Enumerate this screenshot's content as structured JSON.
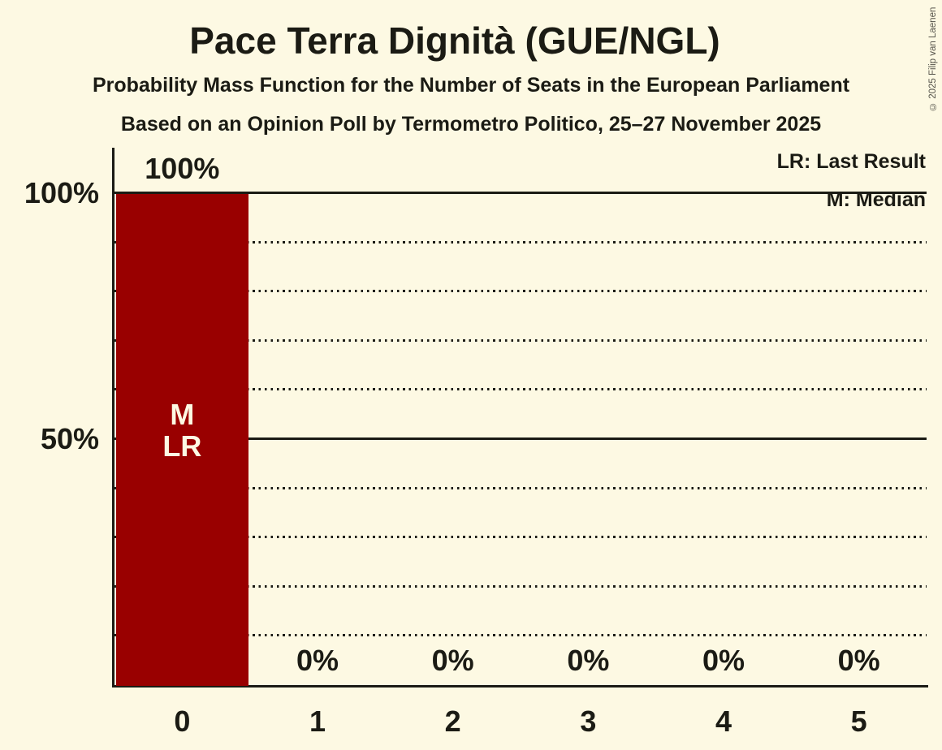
{
  "header": {
    "title": "Pace Terra Dignità (GUE/NGL)",
    "subtitle1": "Probability Mass Function for the Number of Seats in the European Parliament",
    "subtitle2": "Based on an Opinion Poll by Termometro Politico, 25–27 November 2025"
  },
  "legend": {
    "last_result": "LR: Last Result",
    "median": "M: Median"
  },
  "copyright": "© 2025 Filip van Laenen",
  "colors": {
    "background": "#FDF9E3",
    "bar": "#990000",
    "bar_label_text": "#FDF9E3",
    "text": "#1b1b14"
  },
  "chart_data": {
    "type": "bar",
    "title": "Pace Terra Dignità (GUE/NGL)",
    "categories": [
      "0",
      "1",
      "2",
      "3",
      "4",
      "5"
    ],
    "values": [
      100,
      0,
      0,
      0,
      0,
      0
    ],
    "value_labels": [
      "100%",
      "0%",
      "0%",
      "0%",
      "0%",
      "0%"
    ],
    "ylim": [
      0,
      100
    ],
    "y_ticks": [
      {
        "value": 100,
        "label": "100%"
      },
      {
        "value": 50,
        "label": "50%"
      }
    ],
    "gridlines": {
      "dotted_every": 10,
      "solid_at": [
        50,
        100
      ]
    },
    "annotations": [
      {
        "category_index": 0,
        "lines": [
          "M",
          "LR"
        ]
      }
    ],
    "legend_position": "top-right",
    "grid": true
  }
}
